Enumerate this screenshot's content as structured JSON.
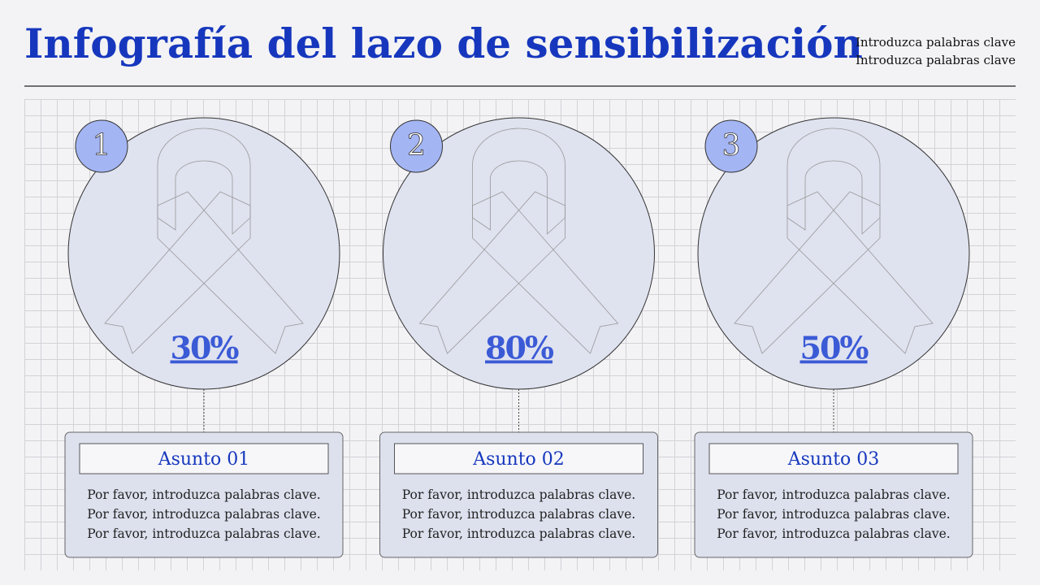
{
  "header": {
    "title": "Infografía del lazo de sensibilización",
    "keywords": [
      "Introduzca palabras clave",
      "Introduzca palabras clave"
    ]
  },
  "items": [
    {
      "number": "1",
      "value": 30,
      "value_label": "30%",
      "title": "Asunto 01",
      "lines": [
        "Por favor, introduzca palabras clave.",
        "Por favor, introduzca palabras clave.",
        "Por favor, introduzca palabras clave."
      ]
    },
    {
      "number": "2",
      "value": 80,
      "value_label": "80%",
      "title": "Asunto 02",
      "lines": [
        "Por favor, introduzca palabras clave.",
        "Por favor, introduzca palabras clave.",
        "Por favor, introduzca palabras clave."
      ]
    },
    {
      "number": "3",
      "value": 50,
      "value_label": "50%",
      "title": "Asunto 03",
      "lines": [
        "Por favor, introduzca palabras clave.",
        "Por favor, introduzca palabras clave.",
        "Por favor, introduzca palabras clave."
      ]
    }
  ]
}
